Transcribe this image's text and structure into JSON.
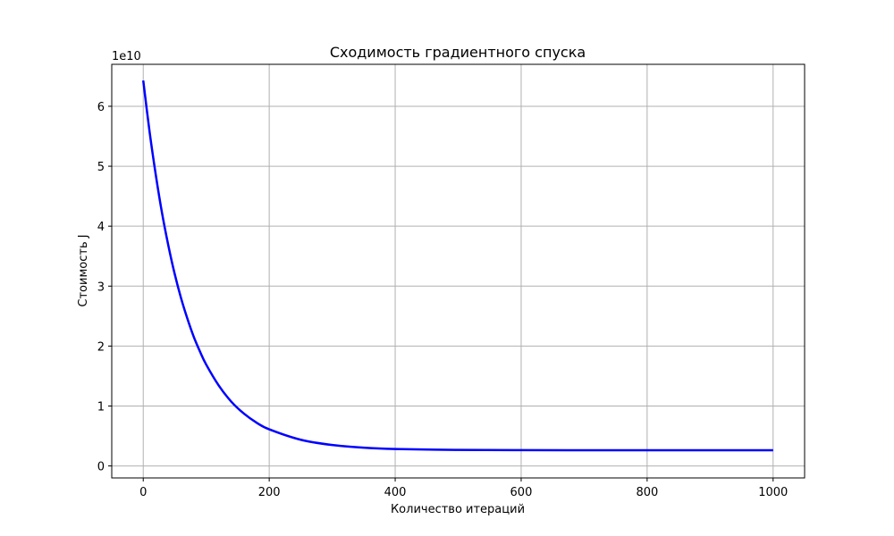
{
  "chart_data": {
    "type": "line",
    "title": "Сходимость градиентного спуска",
    "xlabel": "Количество итераций",
    "ylabel": "Стоимость J",
    "offset_text": "1e10",
    "xlim": [
      -50,
      1050
    ],
    "ylim": [
      -0.2,
      6.7
    ],
    "x_ticks": [
      0,
      200,
      400,
      600,
      800,
      1000
    ],
    "x_tick_labels": [
      "0",
      "200",
      "400",
      "600",
      "800",
      "1000"
    ],
    "y_ticks": [
      0,
      1,
      2,
      3,
      4,
      5,
      6
    ],
    "y_tick_labels": [
      "0",
      "1",
      "2",
      "3",
      "4",
      "5",
      "6"
    ],
    "grid": true,
    "series": [
      {
        "color": "#0000ff",
        "x": [
          0,
          10,
          20,
          30,
          40,
          50,
          60,
          70,
          80,
          90,
          100,
          120,
          140,
          160,
          180,
          200,
          250,
          300,
          350,
          400,
          500,
          600,
          700,
          800,
          900,
          1000
        ],
        "y": [
          6.43,
          5.58,
          4.85,
          4.21,
          3.67,
          3.2,
          2.8,
          2.46,
          2.16,
          1.91,
          1.69,
          1.34,
          1.07,
          0.872,
          0.722,
          0.611,
          0.437,
          0.349,
          0.305,
          0.283,
          0.267,
          0.263,
          0.262,
          0.262,
          0.262,
          0.262
        ]
      }
    ]
  }
}
